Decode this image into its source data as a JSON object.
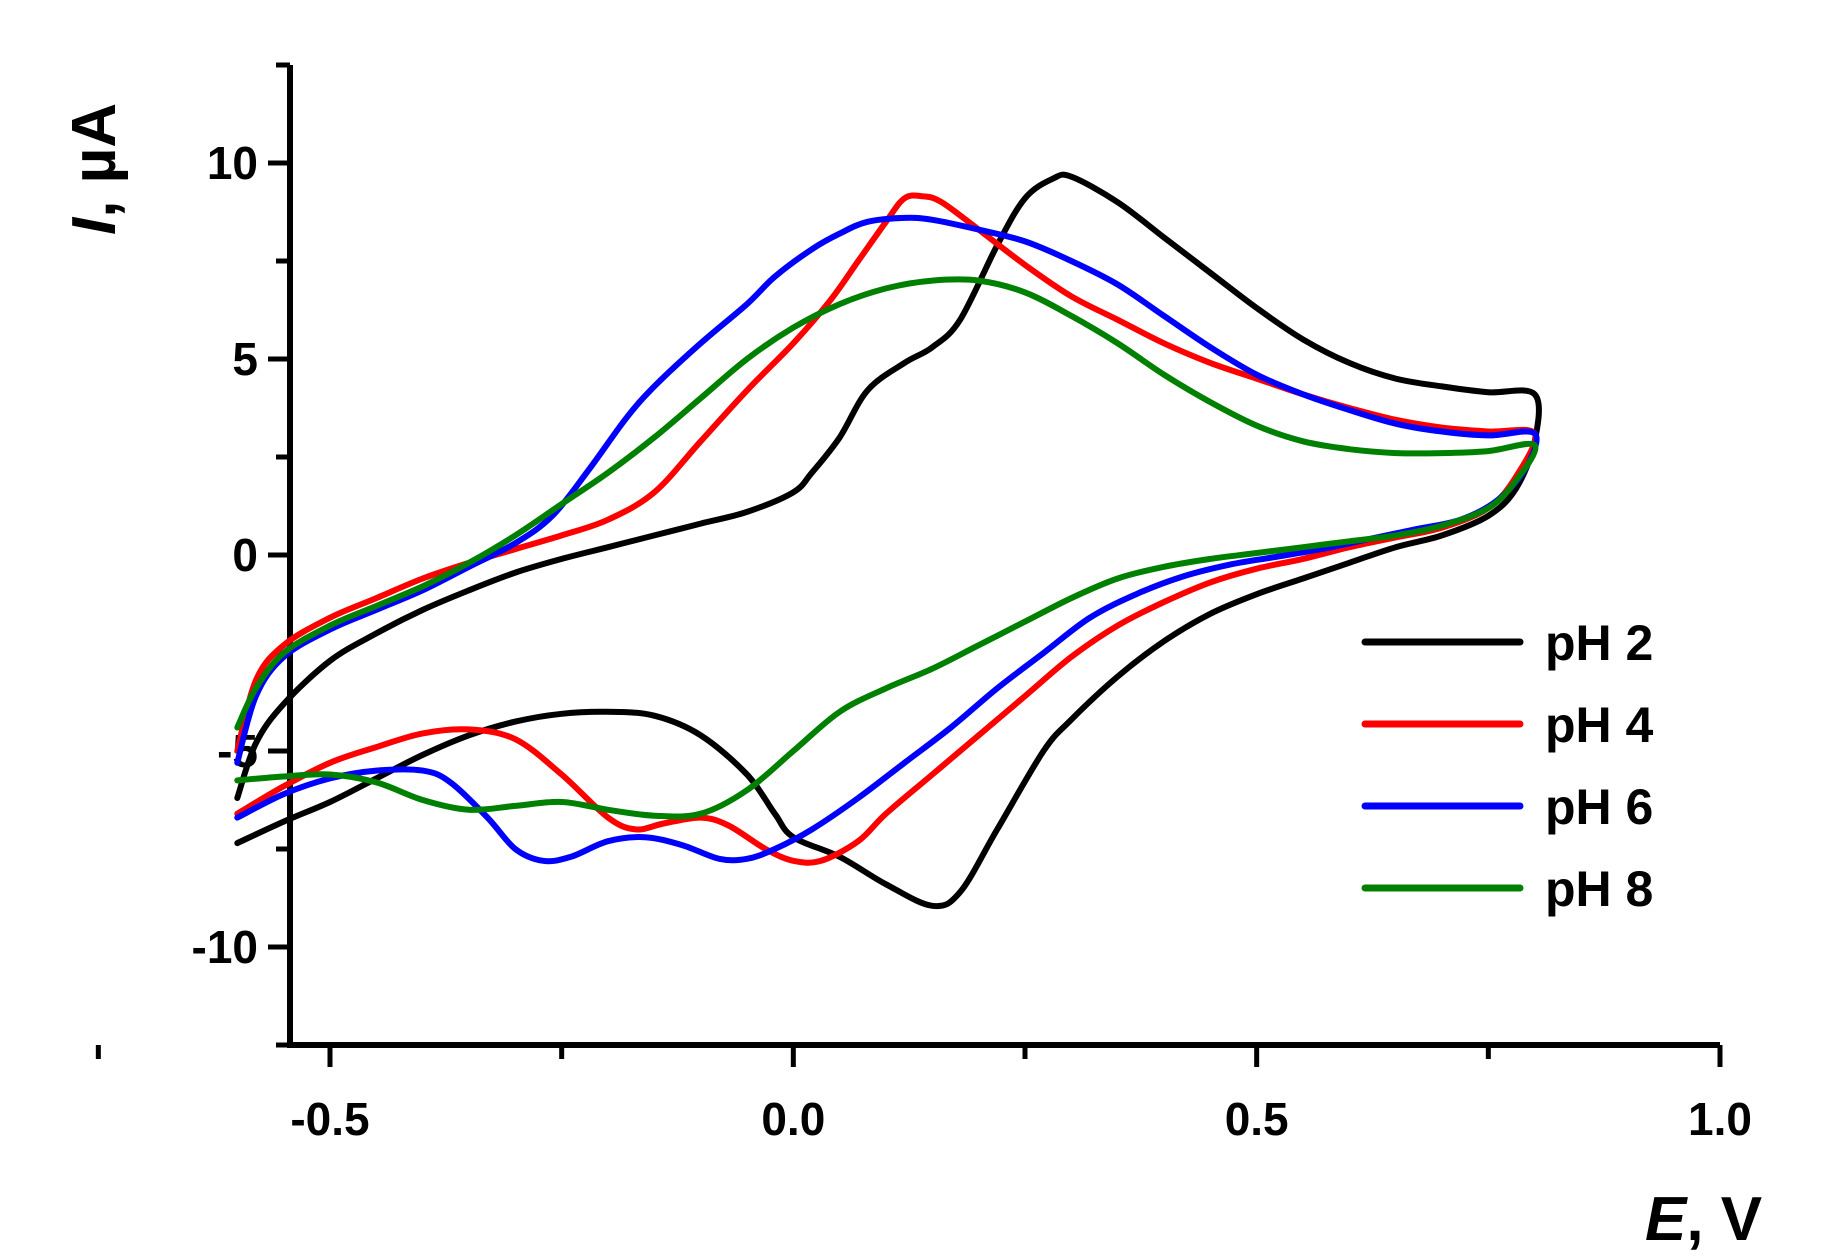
{
  "chart_data": {
    "type": "line",
    "title": "",
    "xlabel": {
      "italic": "E",
      "rest": ", V"
    },
    "ylabel": {
      "italic": "I",
      "rest": ", µA"
    },
    "xlim": [
      -0.5,
      1.0
    ],
    "ylim": [
      -12.5,
      12.5
    ],
    "x_ticks": [
      -0.5,
      0.0,
      0.5,
      1.0
    ],
    "x_tick_labels": [
      "-0.5",
      "0.0",
      "0.5",
      "1.0"
    ],
    "y_ticks": [
      10,
      5,
      0,
      -5,
      -10
    ],
    "y_tick_labels": [
      "10",
      "5",
      "0",
      "-5",
      "-10"
    ],
    "grid": false,
    "legend_position": "bottom-right",
    "series": [
      {
        "name": "pH 2",
        "color": "#000000",
        "points": [
          [
            -0.6,
            -7.35
          ],
          [
            -0.55,
            -6.8
          ],
          [
            -0.5,
            -6.3
          ],
          [
            -0.45,
            -5.7
          ],
          [
            -0.4,
            -5.1
          ],
          [
            -0.35,
            -4.6
          ],
          [
            -0.3,
            -4.25
          ],
          [
            -0.25,
            -4.05
          ],
          [
            -0.2,
            -4.0
          ],
          [
            -0.15,
            -4.1
          ],
          [
            -0.1,
            -4.6
          ],
          [
            -0.05,
            -5.6
          ],
          [
            -0.02,
            -6.6
          ],
          [
            0.0,
            -7.2
          ],
          [
            0.05,
            -7.7
          ],
          [
            0.1,
            -8.4
          ],
          [
            0.15,
            -8.95
          ],
          [
            0.18,
            -8.6
          ],
          [
            0.22,
            -7.0
          ],
          [
            0.27,
            -5.0
          ],
          [
            0.3,
            -4.2
          ],
          [
            0.35,
            -3.1
          ],
          [
            0.4,
            -2.2
          ],
          [
            0.45,
            -1.5
          ],
          [
            0.5,
            -1.0
          ],
          [
            0.55,
            -0.6
          ],
          [
            0.6,
            -0.2
          ],
          [
            0.65,
            0.2
          ],
          [
            0.7,
            0.5
          ],
          [
            0.75,
            1.0
          ],
          [
            0.78,
            1.7
          ],
          [
            0.8,
            2.9
          ],
          [
            0.8,
            4.1
          ],
          [
            0.75,
            4.15
          ],
          [
            0.7,
            4.3
          ],
          [
            0.65,
            4.5
          ],
          [
            0.6,
            4.9
          ],
          [
            0.55,
            5.5
          ],
          [
            0.5,
            6.3
          ],
          [
            0.45,
            7.2
          ],
          [
            0.4,
            8.1
          ],
          [
            0.35,
            9.0
          ],
          [
            0.3,
            9.65
          ],
          [
            0.28,
            9.6
          ],
          [
            0.25,
            9.1
          ],
          [
            0.22,
            7.9
          ],
          [
            0.18,
            6.0
          ],
          [
            0.15,
            5.3
          ],
          [
            0.12,
            4.9
          ],
          [
            0.08,
            4.2
          ],
          [
            0.05,
            3.0
          ],
          [
            0.02,
            2.1
          ],
          [
            0.0,
            1.6
          ],
          [
            -0.05,
            1.1
          ],
          [
            -0.1,
            0.8
          ],
          [
            -0.15,
            0.5
          ],
          [
            -0.2,
            0.2
          ],
          [
            -0.25,
            -0.1
          ],
          [
            -0.3,
            -0.45
          ],
          [
            -0.35,
            -0.9
          ],
          [
            -0.4,
            -1.4
          ],
          [
            -0.45,
            -2.0
          ],
          [
            -0.5,
            -2.7
          ],
          [
            -0.55,
            -3.8
          ],
          [
            -0.58,
            -4.8
          ],
          [
            -0.6,
            -6.2
          ]
        ]
      },
      {
        "name": "pH 4",
        "color": "#ff0000",
        "points": [
          [
            -0.6,
            -6.6
          ],
          [
            -0.55,
            -5.9
          ],
          [
            -0.5,
            -5.3
          ],
          [
            -0.45,
            -4.9
          ],
          [
            -0.4,
            -4.55
          ],
          [
            -0.35,
            -4.45
          ],
          [
            -0.3,
            -4.7
          ],
          [
            -0.25,
            -5.6
          ],
          [
            -0.2,
            -6.7
          ],
          [
            -0.17,
            -7.0
          ],
          [
            -0.14,
            -6.85
          ],
          [
            -0.1,
            -6.7
          ],
          [
            -0.07,
            -6.9
          ],
          [
            -0.03,
            -7.5
          ],
          [
            0.0,
            -7.8
          ],
          [
            0.03,
            -7.8
          ],
          [
            0.07,
            -7.3
          ],
          [
            0.1,
            -6.6
          ],
          [
            0.15,
            -5.6
          ],
          [
            0.2,
            -4.6
          ],
          [
            0.25,
            -3.6
          ],
          [
            0.3,
            -2.6
          ],
          [
            0.35,
            -1.8
          ],
          [
            0.4,
            -1.2
          ],
          [
            0.45,
            -0.7
          ],
          [
            0.5,
            -0.35
          ],
          [
            0.55,
            -0.1
          ],
          [
            0.6,
            0.2
          ],
          [
            0.65,
            0.45
          ],
          [
            0.7,
            0.7
          ],
          [
            0.75,
            1.2
          ],
          [
            0.78,
            2.0
          ],
          [
            0.8,
            3.1
          ],
          [
            0.75,
            3.15
          ],
          [
            0.7,
            3.25
          ],
          [
            0.65,
            3.45
          ],
          [
            0.6,
            3.75
          ],
          [
            0.55,
            4.1
          ],
          [
            0.5,
            4.5
          ],
          [
            0.45,
            4.9
          ],
          [
            0.4,
            5.4
          ],
          [
            0.35,
            6.0
          ],
          [
            0.3,
            6.6
          ],
          [
            0.25,
            7.4
          ],
          [
            0.2,
            8.3
          ],
          [
            0.16,
            9.0
          ],
          [
            0.14,
            9.15
          ],
          [
            0.12,
            9.1
          ],
          [
            0.1,
            8.5
          ],
          [
            0.07,
            7.5
          ],
          [
            0.04,
            6.5
          ],
          [
            0.0,
            5.4
          ],
          [
            -0.05,
            4.2
          ],
          [
            -0.1,
            2.9
          ],
          [
            -0.15,
            1.6
          ],
          [
            -0.2,
            0.9
          ],
          [
            -0.25,
            0.5
          ],
          [
            -0.3,
            0.15
          ],
          [
            -0.35,
            -0.2
          ],
          [
            -0.4,
            -0.6
          ],
          [
            -0.45,
            -1.1
          ],
          [
            -0.5,
            -1.6
          ],
          [
            -0.55,
            -2.3
          ],
          [
            -0.58,
            -3.2
          ],
          [
            -0.6,
            -5.0
          ]
        ]
      },
      {
        "name": "pH 6",
        "color": "#0000ff",
        "points": [
          [
            -0.6,
            -6.7
          ],
          [
            -0.55,
            -6.1
          ],
          [
            -0.5,
            -5.7
          ],
          [
            -0.45,
            -5.5
          ],
          [
            -0.4,
            -5.5
          ],
          [
            -0.37,
            -5.8
          ],
          [
            -0.33,
            -6.7
          ],
          [
            -0.3,
            -7.5
          ],
          [
            -0.27,
            -7.8
          ],
          [
            -0.24,
            -7.7
          ],
          [
            -0.2,
            -7.3
          ],
          [
            -0.16,
            -7.2
          ],
          [
            -0.12,
            -7.4
          ],
          [
            -0.08,
            -7.75
          ],
          [
            -0.05,
            -7.75
          ],
          [
            -0.02,
            -7.5
          ],
          [
            0.02,
            -7.0
          ],
          [
            0.07,
            -6.2
          ],
          [
            0.12,
            -5.3
          ],
          [
            0.17,
            -4.4
          ],
          [
            0.22,
            -3.4
          ],
          [
            0.27,
            -2.5
          ],
          [
            0.32,
            -1.6
          ],
          [
            0.37,
            -1.0
          ],
          [
            0.42,
            -0.55
          ],
          [
            0.47,
            -0.25
          ],
          [
            0.52,
            -0.05
          ],
          [
            0.57,
            0.15
          ],
          [
            0.62,
            0.4
          ],
          [
            0.67,
            0.65
          ],
          [
            0.72,
            0.9
          ],
          [
            0.76,
            1.4
          ],
          [
            0.79,
            2.2
          ],
          [
            0.8,
            3.1
          ],
          [
            0.75,
            3.05
          ],
          [
            0.7,
            3.15
          ],
          [
            0.65,
            3.35
          ],
          [
            0.6,
            3.7
          ],
          [
            0.55,
            4.1
          ],
          [
            0.5,
            4.6
          ],
          [
            0.45,
            5.3
          ],
          [
            0.4,
            6.1
          ],
          [
            0.35,
            6.9
          ],
          [
            0.3,
            7.5
          ],
          [
            0.25,
            8.0
          ],
          [
            0.2,
            8.3
          ],
          [
            0.15,
            8.55
          ],
          [
            0.12,
            8.6
          ],
          [
            0.08,
            8.5
          ],
          [
            0.05,
            8.2
          ],
          [
            0.02,
            7.8
          ],
          [
            -0.02,
            7.1
          ],
          [
            -0.05,
            6.4
          ],
          [
            -0.1,
            5.4
          ],
          [
            -0.15,
            4.3
          ],
          [
            -0.18,
            3.5
          ],
          [
            -0.22,
            2.2
          ],
          [
            -0.26,
            1.0
          ],
          [
            -0.3,
            0.3
          ],
          [
            -0.35,
            -0.3
          ],
          [
            -0.4,
            -0.9
          ],
          [
            -0.45,
            -1.4
          ],
          [
            -0.5,
            -1.9
          ],
          [
            -0.55,
            -2.6
          ],
          [
            -0.58,
            -3.6
          ],
          [
            -0.6,
            -5.3
          ]
        ]
      },
      {
        "name": "pH 8",
        "color": "#008000",
        "points": [
          [
            -0.6,
            -5.75
          ],
          [
            -0.55,
            -5.65
          ],
          [
            -0.5,
            -5.6
          ],
          [
            -0.45,
            -5.8
          ],
          [
            -0.4,
            -6.25
          ],
          [
            -0.35,
            -6.5
          ],
          [
            -0.3,
            -6.4
          ],
          [
            -0.25,
            -6.3
          ],
          [
            -0.2,
            -6.5
          ],
          [
            -0.15,
            -6.65
          ],
          [
            -0.1,
            -6.6
          ],
          [
            -0.05,
            -6.0
          ],
          [
            0.0,
            -5.0
          ],
          [
            0.05,
            -4.0
          ],
          [
            0.1,
            -3.4
          ],
          [
            0.15,
            -2.9
          ],
          [
            0.2,
            -2.3
          ],
          [
            0.25,
            -1.7
          ],
          [
            0.3,
            -1.1
          ],
          [
            0.35,
            -0.6
          ],
          [
            0.4,
            -0.3
          ],
          [
            0.45,
            -0.1
          ],
          [
            0.5,
            0.05
          ],
          [
            0.55,
            0.2
          ],
          [
            0.6,
            0.35
          ],
          [
            0.65,
            0.5
          ],
          [
            0.7,
            0.75
          ],
          [
            0.75,
            1.2
          ],
          [
            0.78,
            1.9
          ],
          [
            0.8,
            2.8
          ],
          [
            0.75,
            2.65
          ],
          [
            0.7,
            2.6
          ],
          [
            0.65,
            2.6
          ],
          [
            0.6,
            2.7
          ],
          [
            0.55,
            2.9
          ],
          [
            0.5,
            3.3
          ],
          [
            0.45,
            3.9
          ],
          [
            0.4,
            4.6
          ],
          [
            0.35,
            5.4
          ],
          [
            0.3,
            6.1
          ],
          [
            0.25,
            6.7
          ],
          [
            0.2,
            7.0
          ],
          [
            0.15,
            7.0
          ],
          [
            0.1,
            6.8
          ],
          [
            0.05,
            6.4
          ],
          [
            0.0,
            5.8
          ],
          [
            -0.05,
            5.0
          ],
          [
            -0.1,
            4.0
          ],
          [
            -0.15,
            3.0
          ],
          [
            -0.2,
            2.1
          ],
          [
            -0.25,
            1.3
          ],
          [
            -0.3,
            0.5
          ],
          [
            -0.35,
            -0.2
          ],
          [
            -0.4,
            -0.8
          ],
          [
            -0.45,
            -1.3
          ],
          [
            -0.5,
            -1.8
          ],
          [
            -0.55,
            -2.5
          ],
          [
            -0.58,
            -3.4
          ],
          [
            -0.6,
            -4.4
          ]
        ]
      }
    ]
  }
}
